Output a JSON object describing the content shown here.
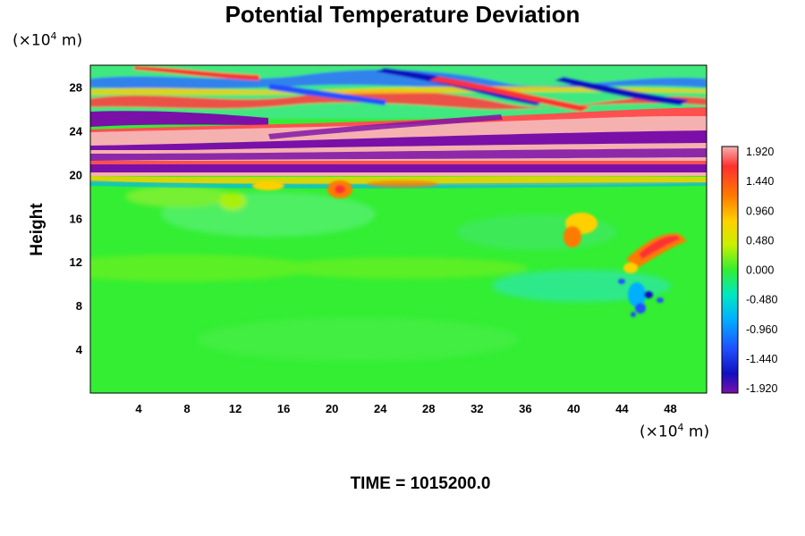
{
  "chart_data": {
    "type": "heatmap",
    "title": "Potential Temperature Deviation",
    "ylabel": "Height",
    "xlabel": "",
    "x_unit": {
      "prefix": "(×10",
      "exp": "4",
      "suffix": " m)"
    },
    "y_unit": {
      "prefix": "(×10",
      "exp": "4",
      "suffix": " m)"
    },
    "xlim": [
      0,
      51
    ],
    "ylim": [
      0,
      30
    ],
    "x_ticks": [
      "4",
      "8",
      "12",
      "16",
      "20",
      "24",
      "28",
      "32",
      "36",
      "40",
      "44",
      "48"
    ],
    "y_ticks": [
      "4",
      "8",
      "12",
      "16",
      "20",
      "24",
      "28"
    ],
    "colorbar": {
      "ticks": [
        "1.920",
        "1.440",
        "0.960",
        "0.480",
        "0.000",
        "-0.480",
        "-0.960",
        "-1.440",
        "-1.920"
      ],
      "range": [
        -1.92,
        1.92
      ]
    },
    "features": [
      {
        "name": "positive-band-upper",
        "x_range": [
          0,
          51
        ],
        "y_center": 23.2,
        "value": 1.92
      },
      {
        "name": "negative-band-upper",
        "x_range": [
          0,
          51
        ],
        "y_center": 22.0,
        "value": -1.92
      },
      {
        "name": "positive-band-middle",
        "x_range": [
          0,
          51
        ],
        "y_center": 21.2,
        "value": 1.92
      },
      {
        "name": "negative-band-lower",
        "x_range": [
          0,
          51
        ],
        "y_center": 20.4,
        "value": -1.92
      },
      {
        "name": "negative-band-left",
        "x_range": [
          0,
          18
        ],
        "y_center": 25.0,
        "value": -1.92
      },
      {
        "name": "warm-anomaly-right",
        "x_range": [
          45,
          50
        ],
        "y_center": 14.0,
        "value": 1.6
      },
      {
        "name": "cold-anomaly-right",
        "x_range": [
          43,
          47
        ],
        "y_center": 9.0,
        "value": -1.4
      }
    ]
  },
  "time_label": "TIME = 1015200.0",
  "colors": {
    "background_field": "#33ee33",
    "positive_max": "#f5b0b0",
    "negative_max": "#7a10a8"
  }
}
